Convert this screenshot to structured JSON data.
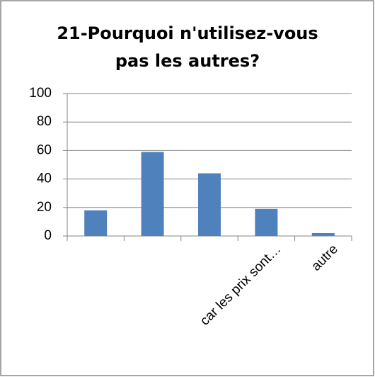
{
  "chart_data": {
    "type": "bar",
    "title": "21-Pourquoi n'utilisez-vous pas les autres?",
    "categories": [
      null,
      null,
      null,
      "car les prix sont…",
      "autre"
    ],
    "values": [
      18,
      59,
      44,
      19,
      2
    ],
    "color": "#4f81bd",
    "ylim": [
      0,
      100
    ],
    "yticks": [
      0,
      20,
      40,
      60,
      80,
      100
    ],
    "grid": true
  }
}
